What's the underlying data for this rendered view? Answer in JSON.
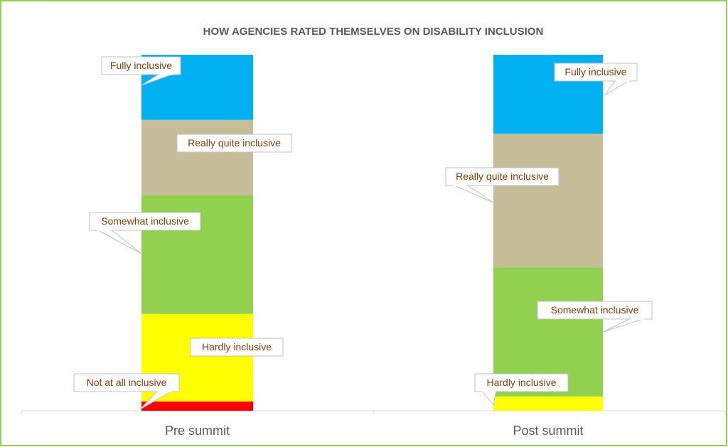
{
  "chart_data": {
    "type": "stacked_bar",
    "title": "HOW AGENCIES RATED THEMSELVES ON DISABILITY INCLUSION",
    "categories": [
      "Pre summit",
      "Post summit"
    ],
    "series": [
      {
        "name": "Not at all inclusive",
        "color": "#ff0000",
        "values": [
          2.6,
          0
        ]
      },
      {
        "name": "Hardly inclusive",
        "color": "#ffff00",
        "values": [
          24.6,
          4
        ]
      },
      {
        "name": "Somewhat inclusive",
        "color": "#92d050",
        "values": [
          33.3,
          36.3
        ]
      },
      {
        "name": "Really quite inclusive",
        "color": "#c4bd97",
        "values": [
          21.2,
          37.5
        ]
      },
      {
        "name": "Fully inclusive",
        "color": "#00b0f0",
        "values": [
          18.3,
          22.2
        ]
      }
    ],
    "ylim": [
      0,
      100
    ]
  }
}
